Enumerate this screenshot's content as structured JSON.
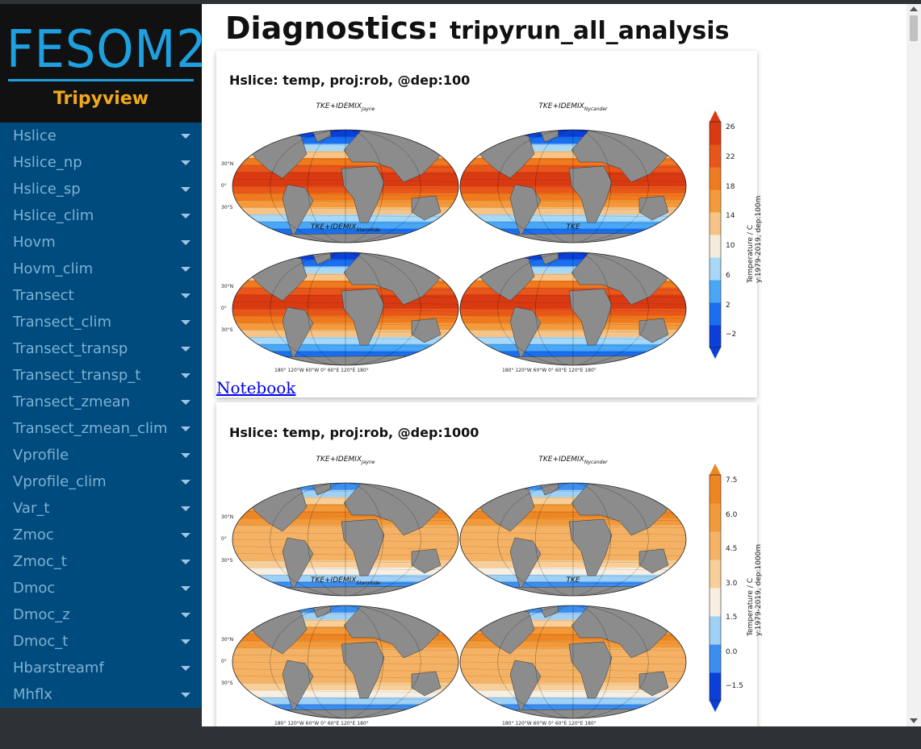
{
  "sidebar": {
    "logo": "FESOM2",
    "subtitle": "Tripyview",
    "items": [
      {
        "label": "Hslice"
      },
      {
        "label": "Hslice_np"
      },
      {
        "label": "Hslice_sp"
      },
      {
        "label": "Hslice_clim"
      },
      {
        "label": "Hovm"
      },
      {
        "label": "Hovm_clim"
      },
      {
        "label": "Transect"
      },
      {
        "label": "Transect_clim"
      },
      {
        "label": "Transect_transp"
      },
      {
        "label": "Transect_transp_t"
      },
      {
        "label": "Transect_zmean"
      },
      {
        "label": "Transect_zmean_clim"
      },
      {
        "label": "Vprofile"
      },
      {
        "label": "Vprofile_clim"
      },
      {
        "label": "Var_t"
      },
      {
        "label": "Zmoc"
      },
      {
        "label": "Zmoc_t"
      },
      {
        "label": "Dmoc"
      },
      {
        "label": "Dmoc_z"
      },
      {
        "label": "Dmoc_t"
      },
      {
        "label": "Hbarstreamf"
      },
      {
        "label": "Mhflx"
      }
    ]
  },
  "page": {
    "title_main": "Diagnostics:",
    "title_sub": "tripyrun_all_analysis"
  },
  "cards": [
    {
      "title": "Hslice: temp, proj:rob, @dep:100",
      "link": "Notebook",
      "panels": [
        {
          "base": "TKE+IDEMIX",
          "sub": "Jayne"
        },
        {
          "base": "TKE+IDEMIX",
          "sub": "Nycander"
        },
        {
          "base": "TKE+IDEMIX",
          "sub": "Stormtide"
        },
        {
          "base": "TKE",
          "sub": ""
        }
      ],
      "lat_labels": [
        "30°N",
        "0°",
        "30°S"
      ],
      "lon_labels": "180°   120°W  60°W    0°     60°E   120°E   180°",
      "colorbar": {
        "ticks": [
          "26",
          "22",
          "18",
          "14",
          "10",
          "6",
          "2",
          "−2"
        ],
        "label_line1": "Temperature / C",
        "label_line2": "y:1979-2019, dep:100m"
      }
    },
    {
      "title": "Hslice: temp, proj:rob, @dep:1000",
      "panels": [
        {
          "base": "TKE+IDEMIX",
          "sub": "Jayne"
        },
        {
          "base": "TKE+IDEMIX",
          "sub": "Nycander"
        },
        {
          "base": "TKE+IDEMIX",
          "sub": "Stormtide"
        },
        {
          "base": "TKE",
          "sub": ""
        }
      ],
      "lat_labels": [
        "30°N",
        "0°",
        "30°S"
      ],
      "lon_labels": "180°   120°W  60°W    0°     60°E   120°E   180°",
      "colorbar": {
        "ticks": [
          "7.5",
          "6.0",
          "4.5",
          "3.0",
          "1.5",
          "0.0",
          "−1.5"
        ],
        "label_line1": "Temperature / C",
        "label_line2": "y:1979-2019, dep:1000m"
      }
    }
  ]
}
